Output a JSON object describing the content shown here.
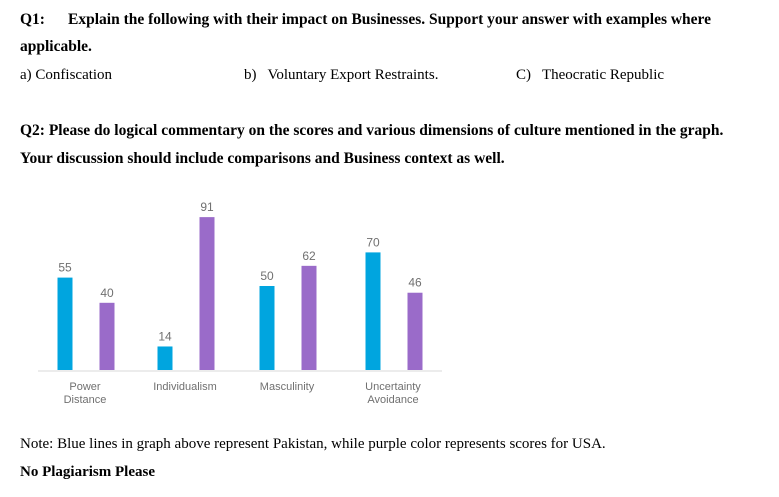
{
  "q1": {
    "number": "Q1:",
    "text": "Explain the following with their impact on Businesses. Support your answer with examples where",
    "text_cont": "applicable.",
    "options": [
      {
        "marker": "a)",
        "text": "Confiscation"
      },
      {
        "marker": "b)",
        "text": "Voluntary Export Restraints."
      },
      {
        "marker": "C)",
        "text": "Theocratic Republic"
      }
    ]
  },
  "q2": {
    "line1": "Q2: Please do logical commentary on the scores and various dimensions of culture mentioned in the graph.",
    "line2": "Your discussion should include comparisons and Business context as well."
  },
  "chart_data": {
    "type": "bar",
    "categories": [
      [
        "Power",
        "Distance"
      ],
      [
        "Individualism"
      ],
      [
        "Masculinity"
      ],
      [
        "Uncertainty",
        "Avoidance"
      ]
    ],
    "series": [
      {
        "values": [
          55,
          14,
          50,
          70
        ],
        "color": "#00a5df"
      },
      {
        "values": [
          40,
          91,
          62,
          46
        ],
        "color": "#9a6bc9"
      }
    ],
    "ylim": [
      0,
      100
    ],
    "grid": false,
    "legend": "none",
    "axis_color": "#d9d9d9",
    "label_color": "#707070"
  },
  "note": "Note: Blue lines in graph above represent Pakistan, while purple color represents scores for USA.",
  "footer": "No Plagiarism Please"
}
